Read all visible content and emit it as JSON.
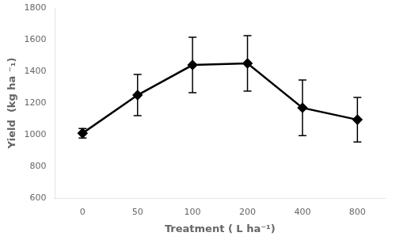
{
  "chart_data": {
    "type": "line",
    "xlabel": "Treatment ( L ha⁻¹)",
    "ylabel": "Yield  (kg ha ⁻₁)",
    "categories": [
      "0",
      "50",
      "100",
      "200",
      "400",
      "800"
    ],
    "series": [
      {
        "color": "black",
        "marker": "diamond",
        "line_style": "solid",
        "values": [
          1010,
          1250,
          1440,
          1450,
          1170,
          1095
        ],
        "yerr": [
          30,
          130,
          175,
          175,
          175,
          140
        ]
      }
    ],
    "ylim": [
      600,
      1800
    ],
    "yticks": [
      600,
      800,
      1000,
      1200,
      1400,
      1600,
      1800
    ],
    "grid": false
  }
}
